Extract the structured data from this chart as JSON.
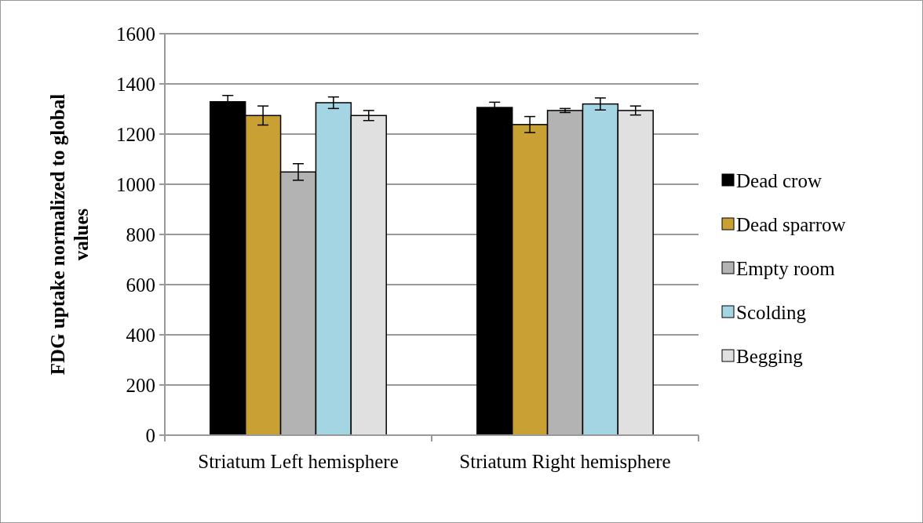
{
  "chart_data": {
    "type": "bar",
    "ylabel": "FDG uptake normalized to global values",
    "categories": [
      "Striatum Left hemisphere",
      "Striatum Right hemisphere"
    ],
    "series": [
      {
        "name": "Dead crow",
        "color": "#000000",
        "values": [
          1329,
          1306
        ],
        "errors": [
          25,
          21
        ]
      },
      {
        "name": "Dead sparrow",
        "color": "#c9a033",
        "values": [
          1274,
          1238
        ],
        "errors": [
          38,
          32
        ]
      },
      {
        "name": "Empty room",
        "color": "#b3b3b3",
        "values": [
          1049,
          1294
        ],
        "errors": [
          33,
          8
        ]
      },
      {
        "name": "Scolding",
        "color": "#a4d5e3",
        "values": [
          1325,
          1320
        ],
        "errors": [
          23,
          24
        ]
      },
      {
        "name": "Begging",
        "color": "#e0e0e0",
        "values": [
          1274,
          1294
        ],
        "errors": [
          20,
          18
        ]
      }
    ],
    "ylim": [
      0,
      1600
    ],
    "yticks": [
      0,
      200,
      400,
      600,
      800,
      1000,
      1200,
      1400,
      1600
    ],
    "grid": "y",
    "legend": "right"
  }
}
